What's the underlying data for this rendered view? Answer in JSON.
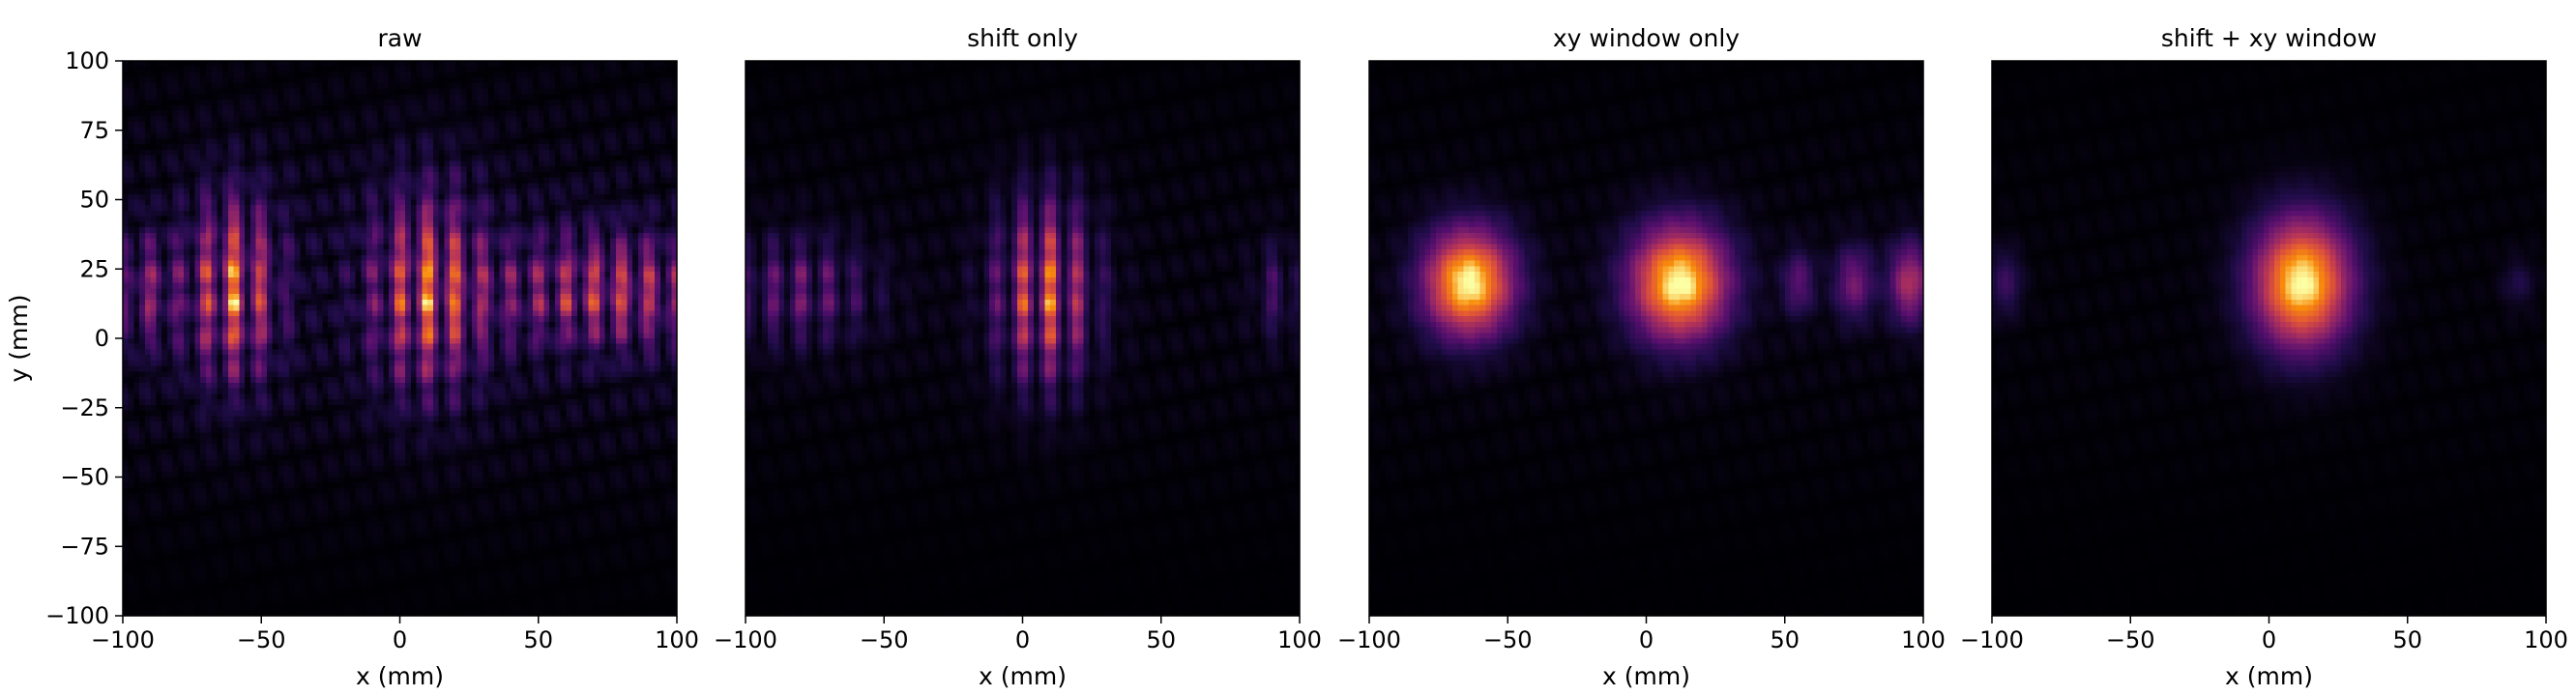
{
  "chart_data": [
    {
      "type": "heatmap",
      "title": "raw",
      "xlabel": "x (mm)",
      "ylabel": "y (mm)",
      "xlim": [
        -100,
        100
      ],
      "ylim": [
        -100,
        100
      ],
      "xticks": [
        "−100",
        "−50",
        "0",
        "50",
        "100"
      ],
      "yticks": [
        "100",
        "75",
        "50",
        "25",
        "0",
        "−25",
        "−50",
        "−75",
        "−100"
      ],
      "colormap": "inferno",
      "blobs": [
        {
          "x": -60,
          "y": 18,
          "sx": 11,
          "sy": 22,
          "amp": 1.0
        },
        {
          "x": 10,
          "y": 17,
          "sx": 14,
          "sy": 24,
          "amp": 0.95
        },
        {
          "x": 75,
          "y": 17,
          "sx": 28,
          "sy": 14,
          "amp": 0.75
        },
        {
          "x": -92,
          "y": 17,
          "sx": 8,
          "sy": 14,
          "amp": 0.5
        }
      ],
      "fringe_period": 10,
      "haze": 0.14
    },
    {
      "type": "heatmap",
      "title": "shift only",
      "xlabel": "x (mm)",
      "ylabel": "",
      "xlim": [
        -100,
        100
      ],
      "ylim": [
        -100,
        100
      ],
      "xticks": [
        "−100",
        "−50",
        "0",
        "50",
        "100"
      ],
      "yticks": [],
      "colormap": "inferno",
      "blobs": [
        {
          "x": 8,
          "y": 17,
          "sx": 12,
          "sy": 22,
          "amp": 1.0
        },
        {
          "x": -80,
          "y": 17,
          "sx": 18,
          "sy": 13,
          "amp": 0.45
        },
        {
          "x": 92,
          "y": 17,
          "sx": 6,
          "sy": 12,
          "amp": 0.3
        }
      ],
      "fringe_period": 10,
      "haze": 0.06
    },
    {
      "type": "heatmap",
      "title": "xy window only",
      "xlabel": "x (mm)",
      "ylabel": "",
      "xlim": [
        -100,
        100
      ],
      "ylim": [
        -100,
        100
      ],
      "xticks": [
        "−100",
        "−50",
        "0",
        "50",
        "100"
      ],
      "yticks": [],
      "colormap": "inferno",
      "blobs": [
        {
          "x": -64,
          "y": 20,
          "sx": 11,
          "sy": 13,
          "amp": 1.0
        },
        {
          "x": 12,
          "y": 20,
          "sx": 12,
          "sy": 14,
          "amp": 1.0
        },
        {
          "x": 95,
          "y": 20,
          "sx": 5,
          "sy": 10,
          "amp": 0.5
        },
        {
          "x": 75,
          "y": 20,
          "sx": 5,
          "sy": 9,
          "amp": 0.35
        },
        {
          "x": 55,
          "y": 20,
          "sx": 4,
          "sy": 8,
          "amp": 0.28
        }
      ],
      "fringe_period": 0,
      "haze": 0.05
    },
    {
      "type": "heatmap",
      "title": "shift + xy window",
      "xlabel": "x (mm)",
      "ylabel": "",
      "xlim": [
        -100,
        100
      ],
      "ylim": [
        -100,
        100
      ],
      "xticks": [
        "−100",
        "−50",
        "0",
        "50",
        "100"
      ],
      "yticks": [],
      "colormap": "inferno",
      "blobs": [
        {
          "x": 12,
          "y": 20,
          "sx": 12,
          "sy": 16,
          "amp": 1.0
        },
        {
          "x": -95,
          "y": 20,
          "sx": 4,
          "sy": 8,
          "amp": 0.2
        },
        {
          "x": 90,
          "y": 20,
          "sx": 4,
          "sy": 6,
          "amp": 0.12
        }
      ],
      "fringe_period": 0,
      "haze": 0.03
    }
  ]
}
